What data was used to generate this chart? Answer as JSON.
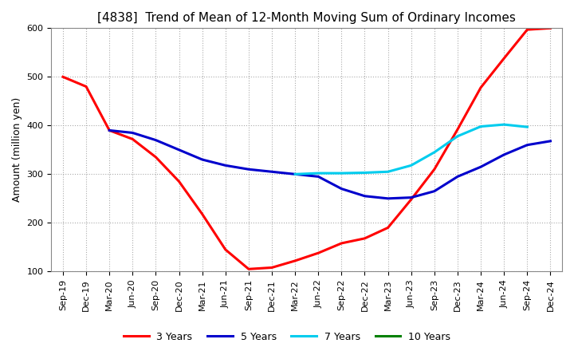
{
  "title": "[4838]  Trend of Mean of 12-Month Moving Sum of Ordinary Incomes",
  "ylabel": "Amount (million yen)",
  "ylim": [
    100,
    600
  ],
  "yticks": [
    100,
    200,
    300,
    400,
    500,
    600
  ],
  "x_labels": [
    "Sep-19",
    "Dec-19",
    "Mar-20",
    "Jun-20",
    "Sep-20",
    "Dec-20",
    "Mar-21",
    "Jun-21",
    "Sep-21",
    "Dec-21",
    "Mar-22",
    "Jun-22",
    "Sep-22",
    "Dec-22",
    "Mar-23",
    "Jun-23",
    "Sep-23",
    "Dec-23",
    "Mar-24",
    "Jun-24",
    "Sep-24",
    "Dec-24"
  ],
  "series": {
    "3 Years": {
      "color": "#FF0000",
      "linewidth": 2.2,
      "data_x": [
        0,
        1,
        2,
        3,
        4,
        5,
        6,
        7,
        8,
        9,
        10,
        11,
        12,
        13,
        14,
        15,
        16,
        17,
        18,
        19,
        20,
        21
      ],
      "data_y": [
        500,
        480,
        390,
        372,
        335,
        285,
        218,
        145,
        105,
        108,
        122,
        138,
        158,
        168,
        190,
        248,
        310,
        392,
        478,
        538,
        597,
        600
      ]
    },
    "5 Years": {
      "color": "#0000CC",
      "linewidth": 2.2,
      "data_x": [
        2,
        3,
        4,
        5,
        6,
        7,
        8,
        9,
        10,
        11,
        12,
        13,
        14,
        15,
        16,
        17,
        18,
        19,
        20,
        21
      ],
      "data_y": [
        390,
        385,
        370,
        350,
        330,
        318,
        310,
        305,
        300,
        295,
        270,
        255,
        250,
        252,
        265,
        295,
        315,
        340,
        360,
        368
      ]
    },
    "7 Years": {
      "color": "#00CCEE",
      "linewidth": 2.2,
      "data_x": [
        10,
        11,
        12,
        13,
        14,
        15,
        16,
        17,
        18,
        19,
        20
      ],
      "data_y": [
        300,
        302,
        302,
        303,
        305,
        318,
        345,
        378,
        398,
        402,
        397
      ]
    },
    "10 Years": {
      "color": "#008000",
      "linewidth": 2.2,
      "data_x": [],
      "data_y": []
    }
  },
  "legend": {
    "labels": [
      "3 Years",
      "5 Years",
      "7 Years",
      "10 Years"
    ],
    "colors": [
      "#FF0000",
      "#0000CC",
      "#00CCEE",
      "#008000"
    ],
    "loc": "lower center",
    "ncol": 4
  },
  "grid_color": "#aaaaaa",
  "background_color": "#FFFFFF",
  "title_fontsize": 11,
  "axis_label_fontsize": 9,
  "tick_fontsize": 8
}
